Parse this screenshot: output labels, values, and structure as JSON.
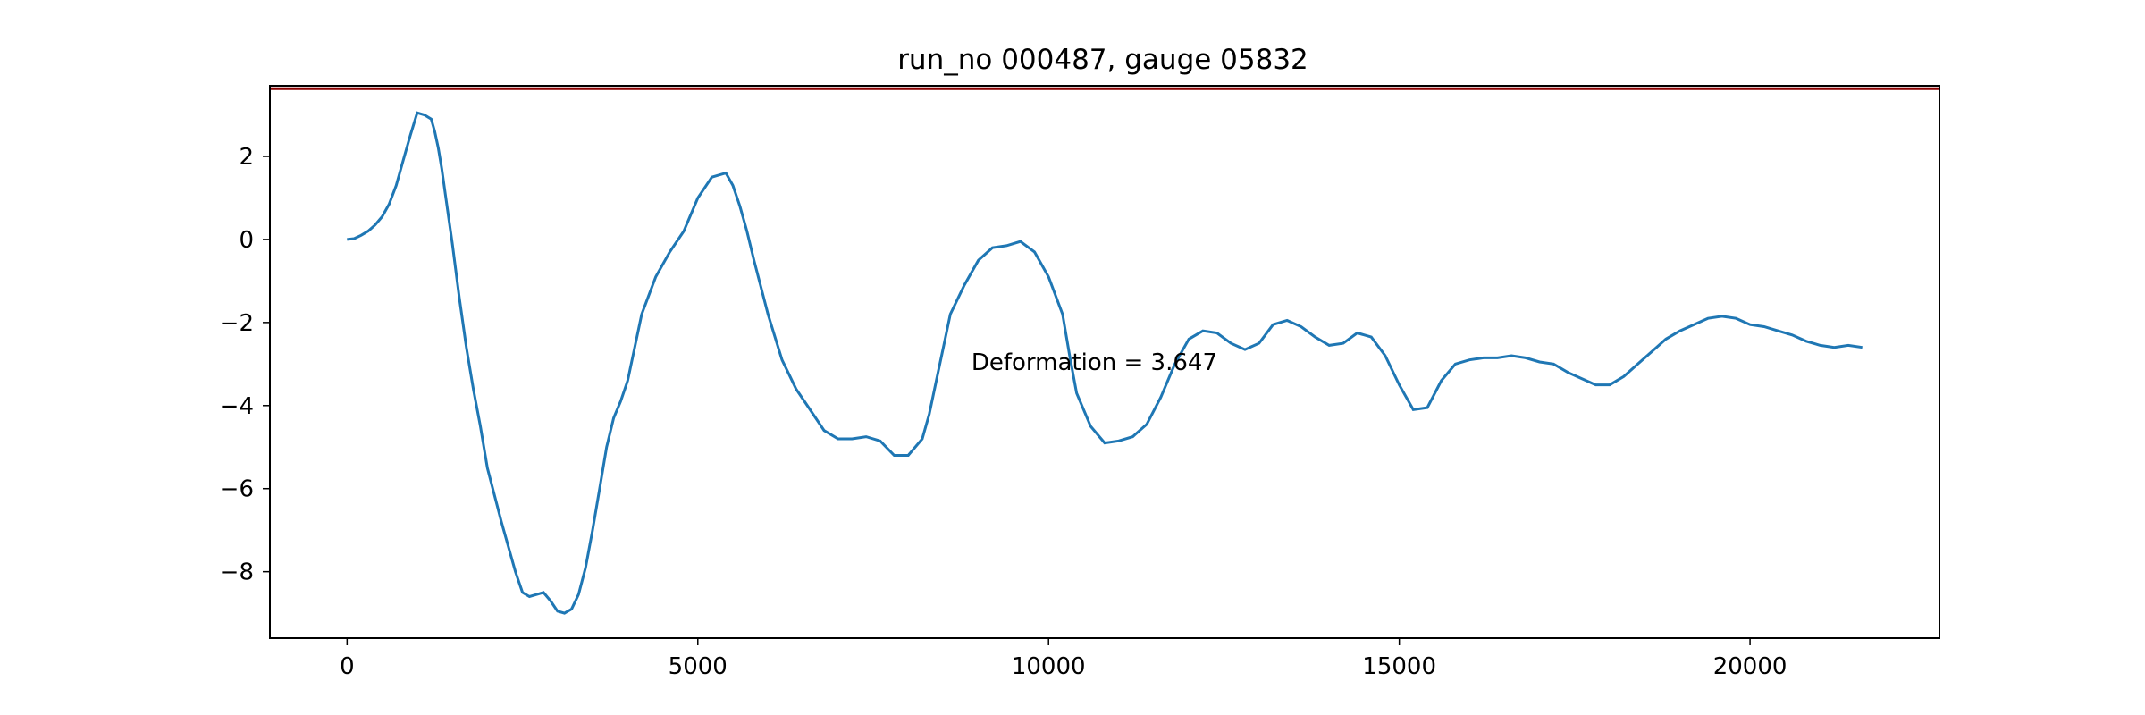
{
  "chart_data": {
    "type": "line",
    "title": "run_no 000487, gauge 05832",
    "xlabel": "",
    "ylabel": "",
    "xlim": [
      -1100,
      22700
    ],
    "ylim": [
      -9.6,
      3.7
    ],
    "xticks": [
      0,
      5000,
      10000,
      15000,
      20000
    ],
    "yticks": [
      2,
      0,
      -2,
      -4,
      -6,
      -8
    ],
    "grid": false,
    "reference_line": {
      "y": 3.63,
      "color": "#8b0000"
    },
    "annotation": {
      "text": "Deformation = 3.647",
      "x": 8900,
      "y": -2.95
    },
    "series": [
      {
        "color": "#1f77b4",
        "x": [
          0,
          100,
          200,
          300,
          400,
          500,
          600,
          700,
          800,
          900,
          1000,
          1100,
          1200,
          1250,
          1300,
          1350,
          1400,
          1500,
          1600,
          1700,
          1800,
          1900,
          2000,
          2200,
          2400,
          2500,
          2600,
          2700,
          2800,
          2900,
          3000,
          3100,
          3200,
          3300,
          3400,
          3500,
          3600,
          3700,
          3800,
          3900,
          4000,
          4200,
          4400,
          4600,
          4800,
          5000,
          5200,
          5400,
          5500,
          5600,
          5700,
          5800,
          6000,
          6200,
          6400,
          6600,
          6800,
          7000,
          7200,
          7400,
          7600,
          7800,
          8000,
          8200,
          8300,
          8400,
          8500,
          8600,
          8800,
          9000,
          9200,
          9400,
          9600,
          9800,
          10000,
          10200,
          10300,
          10400,
          10600,
          10800,
          11000,
          11200,
          11400,
          11600,
          11800,
          12000,
          12200,
          12400,
          12600,
          12800,
          13000,
          13200,
          13400,
          13600,
          13800,
          14000,
          14200,
          14400,
          14600,
          14800,
          15000,
          15200,
          15400,
          15600,
          15800,
          16000,
          16200,
          16400,
          16600,
          16800,
          17000,
          17200,
          17400,
          17600,
          17800,
          18000,
          18200,
          18400,
          18600,
          18800,
          19000,
          19200,
          19400,
          19600,
          19800,
          20000,
          20200,
          20400,
          20600,
          20800,
          21000,
          21200,
          21400,
          21600
        ],
        "y": [
          0,
          0.02,
          0.1,
          0.2,
          0.35,
          0.55,
          0.85,
          1.3,
          1.9,
          2.5,
          3.05,
          3.0,
          2.9,
          2.6,
          2.2,
          1.7,
          1.1,
          -0.1,
          -1.4,
          -2.6,
          -3.6,
          -4.5,
          -5.5,
          -6.8,
          -8.0,
          -8.5,
          -8.6,
          -8.55,
          -8.5,
          -8.7,
          -8.95,
          -9.0,
          -8.9,
          -8.55,
          -7.9,
          -7.0,
          -6.0,
          -5.0,
          -4.3,
          -3.9,
          -3.4,
          -1.8,
          -0.9,
          -0.3,
          0.2,
          1.0,
          1.5,
          1.6,
          1.3,
          0.8,
          0.2,
          -0.5,
          -1.8,
          -2.9,
          -3.6,
          -4.1,
          -4.6,
          -4.8,
          -4.8,
          -4.75,
          -4.85,
          -5.2,
          -5.2,
          -4.8,
          -4.2,
          -3.4,
          -2.6,
          -1.8,
          -1.1,
          -0.5,
          -0.2,
          -0.15,
          -0.05,
          -0.3,
          -0.9,
          -1.8,
          -2.8,
          -3.7,
          -4.5,
          -4.9,
          -4.85,
          -4.75,
          -4.45,
          -3.8,
          -3.0,
          -2.4,
          -2.2,
          -2.25,
          -2.5,
          -2.65,
          -2.5,
          -2.05,
          -1.95,
          -2.1,
          -2.35,
          -2.55,
          -2.5,
          -2.25,
          -2.35,
          -2.8,
          -3.5,
          -4.1,
          -4.05,
          -3.4,
          -3.0,
          -2.9,
          -2.85,
          -2.85,
          -2.8,
          -2.85,
          -2.95,
          -3.0,
          -3.2,
          -3.35,
          -3.5,
          -3.5,
          -3.3,
          -3.0,
          -2.7,
          -2.4,
          -2.2,
          -2.05,
          -1.9,
          -1.85,
          -1.9,
          -2.05,
          -2.1,
          -2.2,
          -2.3,
          -2.45,
          -2.55,
          -2.6,
          -2.55,
          -2.6
        ]
      }
    ]
  }
}
